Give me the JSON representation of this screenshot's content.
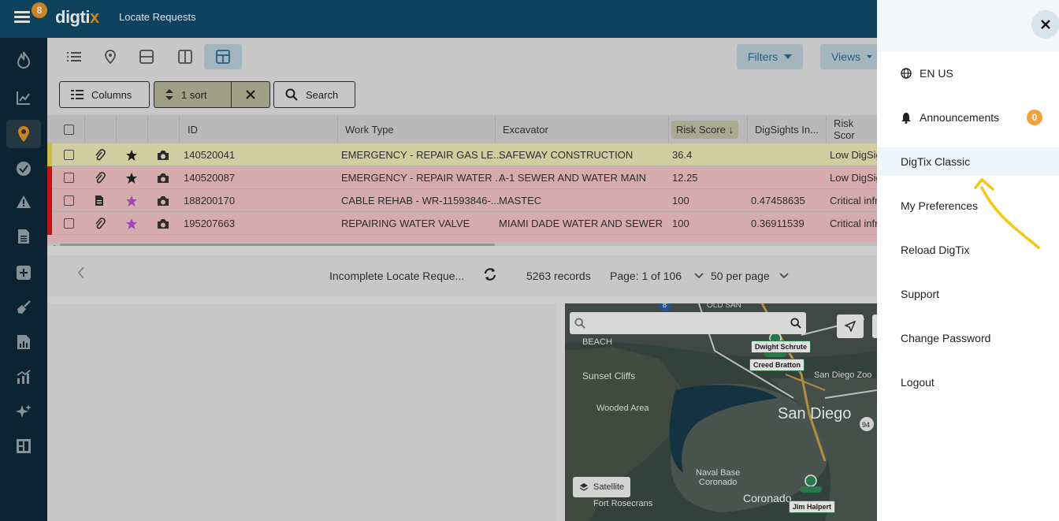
{
  "header": {
    "notification_count": "8",
    "logo_main": "digti",
    "logo_accent": "x",
    "page_title": "Locate Requests"
  },
  "toolbar": {
    "filters_label": "Filters",
    "views_label": "Views",
    "columns_label": "Columns",
    "sort_label": "1 sort",
    "search_label": "Search"
  },
  "table": {
    "headers": [
      "ID",
      "Work Type",
      "Excavator",
      "Risk Score",
      "DigSights In...",
      "Risk Scor"
    ],
    "rows": [
      {
        "id": "140520041",
        "work_type": "EMERGENCY - REPAIR GAS LE...",
        "excavator": "SAFEWAY CONSTRUCTION",
        "risk": "36.4",
        "digsights": "",
        "risk_text": "Low DigSig",
        "color": "#f0e9b8",
        "bar": "#e9d94a"
      },
      {
        "id": "140520087",
        "work_type": "EMERGENCY - REPAIR WATER ...",
        "excavator": "A-1 SEWER AND WATER MAIN",
        "risk": "12.25",
        "digsights": "",
        "risk_text": "Low DigSig",
        "color": "#f3c3c5",
        "bar": "#d91a1a"
      },
      {
        "id": "188200170",
        "work_type": "CABLE REHAB - WR-11593846-...",
        "excavator": "MASTEC",
        "risk": "100",
        "digsights": "0.47458635",
        "risk_text": "Critical infr",
        "color": "#f3c3c5",
        "bar": "#d91a1a"
      },
      {
        "id": "195207663",
        "work_type": "REPAIRING WATER VALVE",
        "excavator": "MIAMI DADE WATER AND SEWER",
        "risk": "100",
        "digsights": "0.36911539",
        "risk_text": "Critical infr",
        "color": "#f3c3c5",
        "bar": "#d91a1a"
      }
    ]
  },
  "pager": {
    "view_name": "Incomplete Locate Reque...",
    "records": "5263 records",
    "page": "Page: 1 of 106",
    "per_page": "50 per page"
  },
  "map": {
    "search_placeholder": "",
    "satellite_label": "Satellite",
    "labels": {
      "beach": "BEACH",
      "sunset_cliffs": "Sunset Cliffs",
      "wooded_area": "Wooded Area",
      "san_diego": "San Diego",
      "san_diego_zoo": "San Diego Zoo",
      "naval_base": "Naval Base",
      "coronado_small": "Coronado",
      "coronado": "Coronado",
      "fort_rosecrans": "Fort Rosecrans",
      "old_san": "OLD SAN",
      "route_8": "8",
      "route_94": "94"
    },
    "markers": [
      "Dwight Schrute",
      "Creed Bratton",
      "Jim Halpert"
    ]
  },
  "drawer": {
    "items": [
      {
        "label": "EN US",
        "icon": "globe-icon"
      },
      {
        "label": "Announcements",
        "icon": "bell-icon",
        "count": "0"
      },
      {
        "label": "DigTix Classic"
      },
      {
        "label": "My Preferences"
      },
      {
        "label": "Reload DigTix"
      },
      {
        "label": "Support"
      },
      {
        "label": "Change Password"
      },
      {
        "label": "Logout"
      }
    ]
  },
  "colors": {
    "topbar": "#0f4b6a",
    "sidebar": "#0e2a3a",
    "accent_orange": "#e8952a",
    "annotation_arrow": "#f5c518"
  }
}
